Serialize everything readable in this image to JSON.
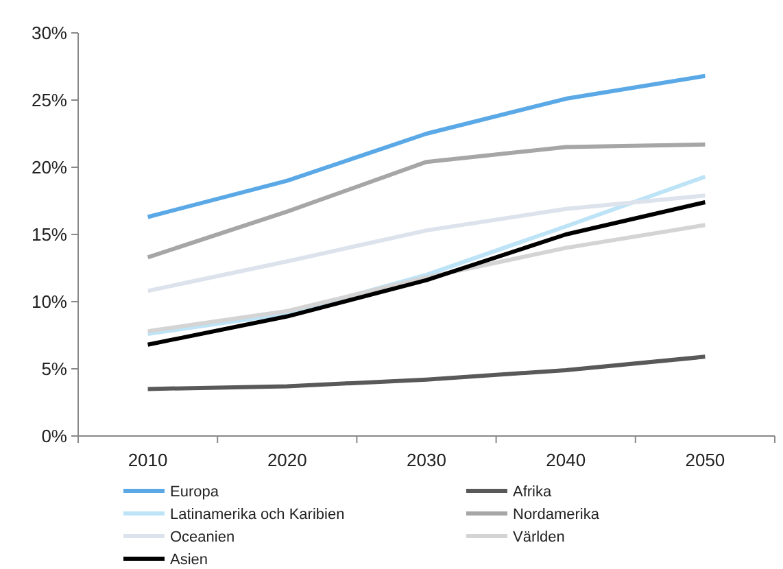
{
  "chart_data": {
    "type": "line",
    "categories": [
      "2010",
      "2020",
      "2030",
      "2040",
      "2050"
    ],
    "ylim": [
      0,
      30
    ],
    "yticks": [
      {
        "value": 0,
        "label": "0%"
      },
      {
        "value": 5,
        "label": "5%"
      },
      {
        "value": 10,
        "label": "10%"
      },
      {
        "value": 15,
        "label": "15%"
      },
      {
        "value": 20,
        "label": "20%"
      },
      {
        "value": 25,
        "label": "25%"
      },
      {
        "value": 30,
        "label": "30%"
      }
    ],
    "grid": false,
    "legend": "bottom",
    "marker": "none",
    "line_style": "solid",
    "series": [
      {
        "name": "Europa",
        "color": "#5aa9e6",
        "values": [
          16.3,
          19.0,
          22.5,
          25.1,
          26.8
        ]
      },
      {
        "name": "Afrika",
        "color": "#595959",
        "values": [
          3.5,
          3.7,
          4.2,
          4.9,
          5.9
        ]
      },
      {
        "name": "Latinamerika  och Karibien",
        "color": "#bde3f7",
        "values": [
          7.6,
          9.1,
          12.0,
          15.6,
          19.3
        ]
      },
      {
        "name": "Nordamerika",
        "color": "#a6a6a6",
        "values": [
          13.3,
          16.7,
          20.4,
          21.5,
          21.7
        ]
      },
      {
        "name": "Oceanien",
        "color": "#dde3ec",
        "values": [
          10.8,
          13.0,
          15.3,
          16.9,
          17.9
        ]
      },
      {
        "name": "Världen",
        "color": "#d4d4d4",
        "values": [
          7.8,
          9.3,
          11.8,
          14.0,
          15.7
        ]
      },
      {
        "name": "Asien",
        "color": "#000000",
        "values": [
          6.8,
          8.9,
          11.6,
          15.0,
          17.4
        ]
      }
    ]
  }
}
